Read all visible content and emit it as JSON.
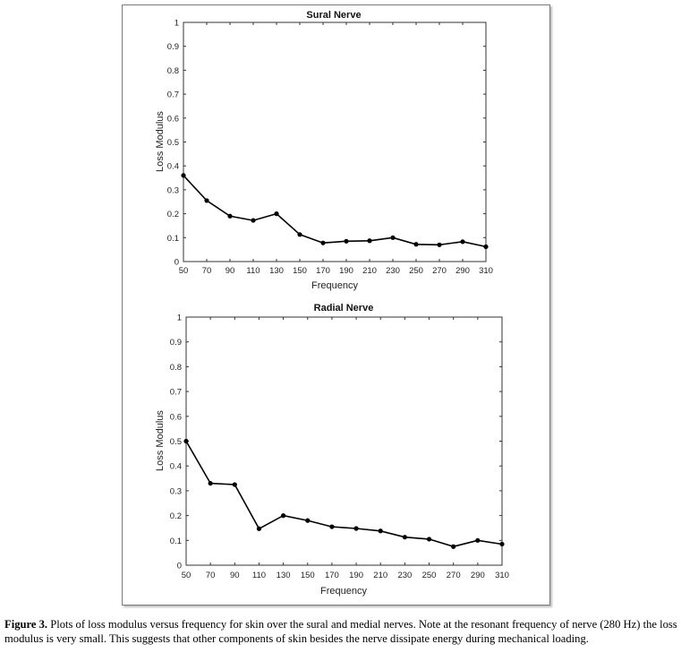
{
  "chart_data": [
    {
      "type": "line",
      "title": "Sural Nerve",
      "xlabel": "Frequency",
      "ylabel": "Loss Modulus",
      "x": [
        50,
        70,
        90,
        110,
        130,
        150,
        170,
        190,
        210,
        230,
        250,
        270,
        290,
        310
      ],
      "values": [
        0.36,
        0.255,
        0.19,
        0.172,
        0.2,
        0.113,
        0.078,
        0.085,
        0.087,
        0.1,
        0.072,
        0.07,
        0.083,
        0.062
      ],
      "xticks": [
        "50",
        "70",
        "90",
        "110",
        "130",
        "150",
        "170",
        "190",
        "210",
        "230",
        "250",
        "270",
        "290",
        "310"
      ],
      "yticks": [
        "0",
        "0.1",
        "0.2",
        "0.3",
        "0.4",
        "0.5",
        "0.6",
        "0.7",
        "0.8",
        "0.9",
        "1"
      ],
      "xlim": [
        50,
        310
      ],
      "ylim": [
        0,
        1
      ],
      "grid": false,
      "line_color": "#000000"
    },
    {
      "type": "line",
      "title": "Radial Nerve",
      "xlabel": "Frequency",
      "ylabel": "Loss Modulus",
      "x": [
        50,
        70,
        90,
        110,
        130,
        150,
        170,
        190,
        210,
        230,
        250,
        270,
        290,
        310
      ],
      "values": [
        0.5,
        0.33,
        0.325,
        0.147,
        0.2,
        0.18,
        0.155,
        0.148,
        0.138,
        0.113,
        0.105,
        0.075,
        0.1,
        0.085
      ],
      "xticks": [
        "50",
        "70",
        "90",
        "110",
        "130",
        "150",
        "170",
        "190",
        "210",
        "230",
        "250",
        "270",
        "290",
        "310"
      ],
      "yticks": [
        "0",
        "0.1",
        "0.2",
        "0.3",
        "0.4",
        "0.5",
        "0.6",
        "0.7",
        "0.8",
        "0.9",
        "1"
      ],
      "xlim": [
        50,
        310
      ],
      "ylim": [
        0,
        1
      ],
      "grid": false,
      "line_color": "#000000"
    }
  ],
  "caption": {
    "label": "Figure 3.",
    "text": " Plots of loss modulus versus frequency for skin over the sural and medial nerves. Note at the resonant frequency of nerve (280 Hz) the loss modulus is very small. This suggests that other components of skin besides the nerve dissipate energy during mechanical loading."
  }
}
